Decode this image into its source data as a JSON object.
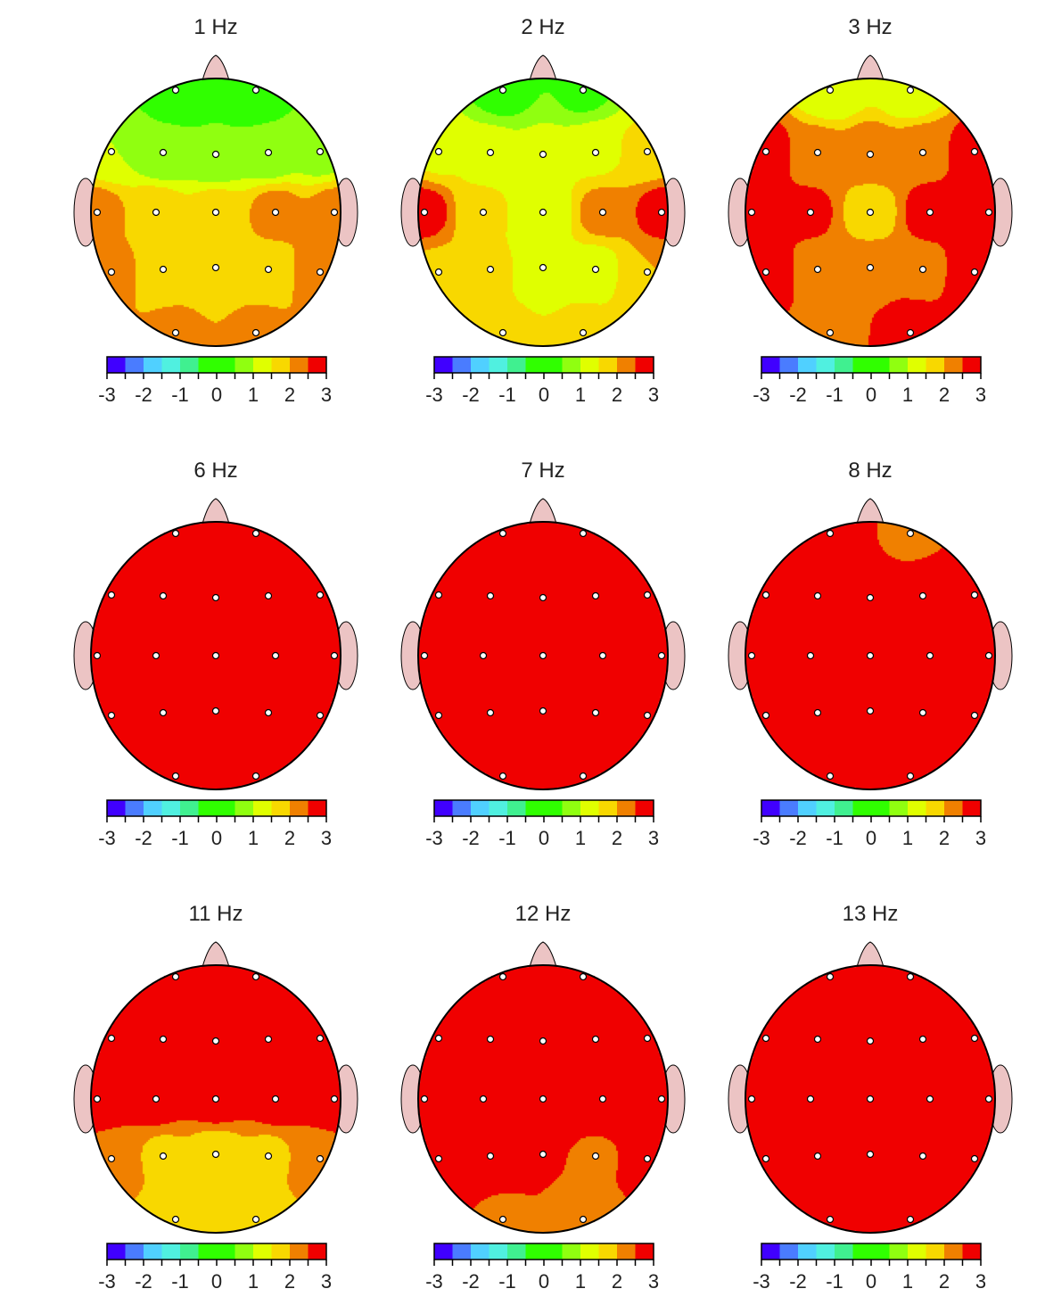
{
  "chart_data": {
    "type": "heatmap",
    "subtype": "eeg-topographic-map-grid",
    "colorbar": {
      "min": -3,
      "max": 3,
      "step": 0.5,
      "tick_labels": [
        "-3",
        "-2",
        "-1",
        "0",
        "1",
        "2",
        "3"
      ],
      "colors": [
        "#4000ff",
        "#4a7cff",
        "#50d0ff",
        "#50f0e0",
        "#40f090",
        "#30ff00",
        "#30ff00",
        "#90ff10",
        "#e0ff00",
        "#f8d800",
        "#f08000",
        "#f00000"
      ]
    },
    "head_colors": {
      "ears_nose": "#ecc4c4",
      "electrode": "#ffffff",
      "outline": "#000000"
    },
    "electrodes": [
      "Fp1",
      "Fp2",
      "F7",
      "F3",
      "Fz",
      "F4",
      "F8",
      "T3",
      "C3",
      "Cz",
      "C4",
      "T4",
      "T5",
      "P3",
      "Pz",
      "P4",
      "T6",
      "O1",
      "O2"
    ],
    "panels": [
      {
        "title": "1 Hz",
        "values": [
          0.2,
          0.2,
          1.0,
          0.6,
          0.5,
          0.6,
          0.8,
          2.2,
          1.8,
          1.7,
          2.2,
          2.2,
          2.2,
          1.7,
          1.6,
          1.8,
          2.2,
          2.1,
          2.1
        ]
      },
      {
        "title": "2 Hz",
        "values": [
          0.3,
          0.4,
          1.4,
          1.2,
          1.1,
          1.4,
          1.6,
          2.7,
          1.6,
          1.1,
          2.2,
          2.7,
          1.9,
          1.6,
          1.2,
          1.3,
          2.0,
          1.6,
          1.6
        ]
      },
      {
        "title": "3 Hz",
        "values": [
          1.0,
          1.1,
          2.7,
          2.2,
          2.3,
          2.3,
          2.7,
          2.9,
          2.6,
          1.7,
          2.7,
          2.9,
          2.8,
          2.3,
          2.2,
          2.3,
          2.9,
          2.3,
          2.8
        ]
      },
      {
        "title": "6 Hz",
        "values": [
          3,
          3,
          3,
          3,
          3,
          3,
          3,
          3,
          3,
          3,
          3,
          3,
          3,
          3,
          3,
          3,
          3,
          3,
          3
        ]
      },
      {
        "title": "7 Hz",
        "values": [
          3,
          3,
          3,
          3,
          3,
          3,
          3,
          3,
          3,
          3,
          3,
          3,
          3,
          3,
          3,
          3,
          3,
          3,
          3
        ]
      },
      {
        "title": "8 Hz",
        "values": [
          3,
          2.3,
          3,
          3,
          3,
          3,
          3,
          3,
          3,
          3,
          3,
          3,
          3,
          3,
          3,
          3,
          3,
          3,
          3
        ]
      },
      {
        "title": "11 Hz",
        "values": [
          3,
          3,
          3,
          3,
          3,
          3,
          3,
          2.8,
          2.8,
          2.8,
          2.8,
          2.8,
          2.3,
          1.9,
          1.7,
          1.9,
          2.3,
          1.7,
          1.7
        ]
      },
      {
        "title": "12 Hz",
        "values": [
          3,
          3,
          3,
          3,
          3,
          3,
          3,
          3,
          3,
          3,
          3,
          3,
          3,
          3,
          2.5,
          2.45,
          2.6,
          2.4,
          2.3
        ]
      },
      {
        "title": "13 Hz",
        "values": [
          3,
          3,
          3,
          3,
          3,
          3,
          3,
          3,
          3,
          3,
          3,
          3,
          3,
          3,
          3,
          3,
          3,
          3,
          3
        ]
      }
    ]
  }
}
